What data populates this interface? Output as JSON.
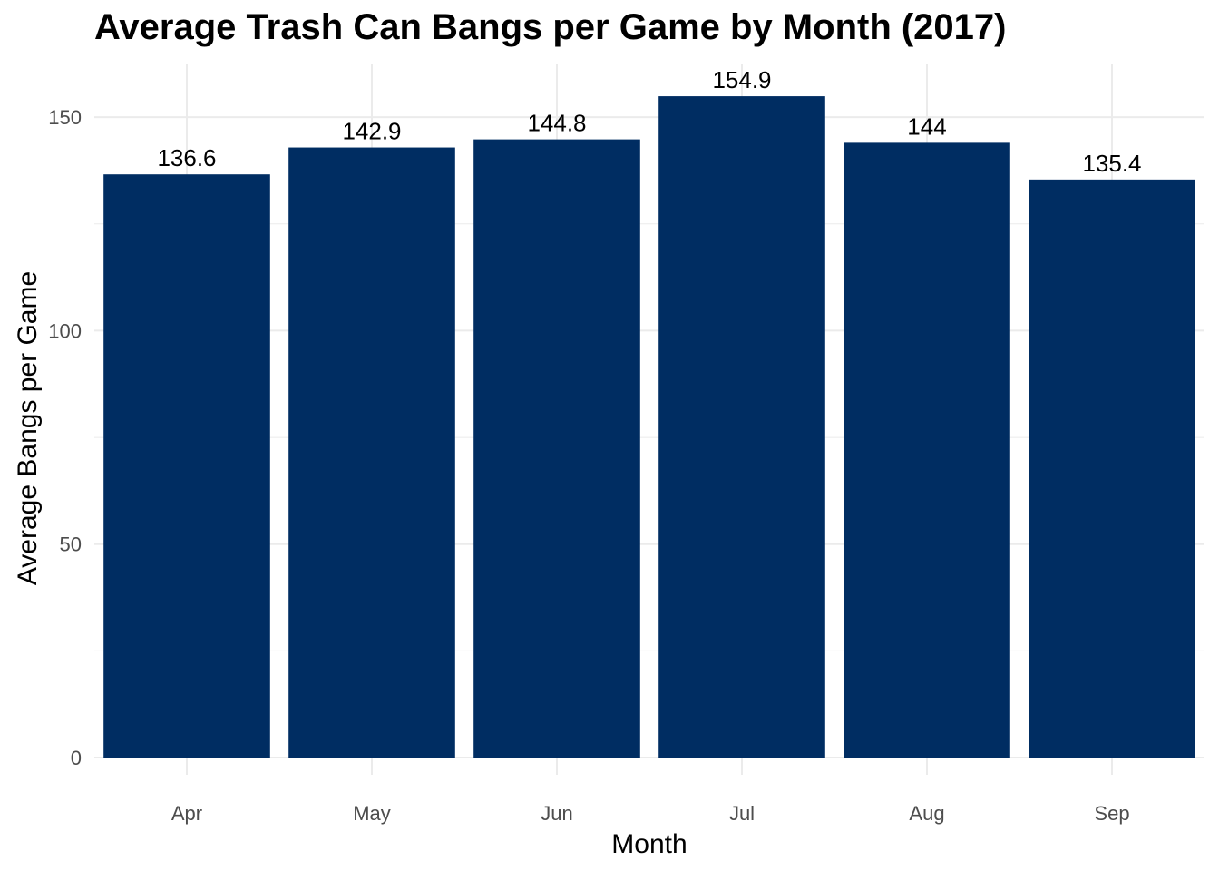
{
  "chart_data": {
    "type": "bar",
    "title": "Average Trash Can Bangs per Game by Month (2017)",
    "xlabel": "Month",
    "ylabel": "Average Bangs per Game",
    "categories": [
      "Apr",
      "May",
      "Jun",
      "Jul",
      "Aug",
      "Sep"
    ],
    "values": [
      136.6,
      142.9,
      144.8,
      154.9,
      144,
      135.4
    ],
    "data_labels": [
      "136.6",
      "142.9",
      "144.8",
      "154.9",
      "144",
      "135.4"
    ],
    "ylim": [
      0,
      160
    ],
    "yticks": [
      0,
      50,
      100,
      150
    ],
    "yticks_labels": [
      "0",
      "50",
      "100",
      "150"
    ],
    "grid": true,
    "legend": "none",
    "bar_color": "#002d62",
    "grid_color": "#ebebeb"
  }
}
